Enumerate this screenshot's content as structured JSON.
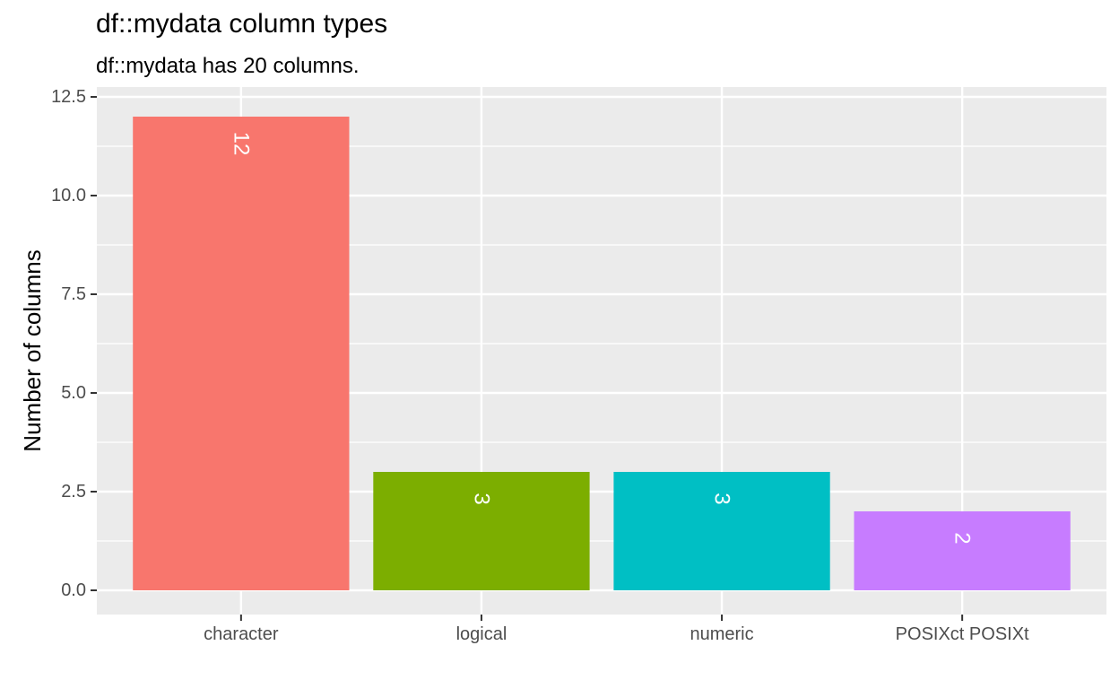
{
  "chart_data": {
    "type": "bar",
    "title": "df::mydata column types",
    "subtitle": "df::mydata has 20 columns.",
    "xlabel": "",
    "ylabel": "Number of columns",
    "categories": [
      "character",
      "logical",
      "numeric",
      "POSIXct POSIXt"
    ],
    "values": [
      12,
      3,
      3,
      2
    ],
    "data_labels": [
      "12",
      "3",
      "3",
      "2"
    ],
    "colors": [
      "#F8766D",
      "#7CAE00",
      "#00BFC4",
      "#C77CFF"
    ],
    "ylim": [
      0,
      12.5
    ],
    "yticks": [
      0.0,
      2.5,
      5.0,
      7.5,
      10.0,
      12.5
    ],
    "ytick_labels": [
      "0.0",
      "2.5",
      "5.0",
      "7.5",
      "10.0",
      "12.5"
    ],
    "grid": true,
    "legend": "none",
    "panel_background": "#EBEBEB",
    "grid_color": "#FFFFFF"
  }
}
